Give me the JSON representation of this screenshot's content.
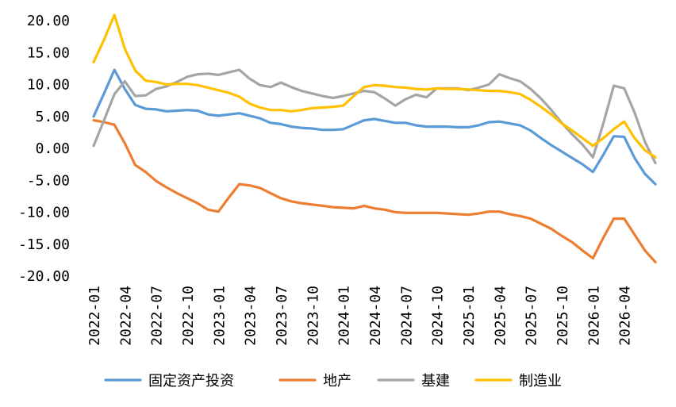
{
  "chart_data": {
    "type": "line",
    "title": "",
    "xlabel": "",
    "ylabel": "",
    "ylim": [
      -20,
      20
    ],
    "y_ticks": [
      "20.00",
      "15.00",
      "10.00",
      "5.00",
      "0.00",
      "-5.00",
      "-10.00",
      "-15.00",
      "-20.00"
    ],
    "y_tick_values": [
      20,
      15,
      10,
      5,
      0,
      -5,
      -10,
      -15,
      -20
    ],
    "grid": false,
    "legend_position": "bottom",
    "x": [
      "2022-01",
      "2022-02",
      "2022-03",
      "2022-04",
      "2022-05",
      "2022-06",
      "2022-07",
      "2022-08",
      "2022-09",
      "2022-10",
      "2022-11",
      "2022-12",
      "2023-01",
      "2023-02",
      "2023-03",
      "2023-04",
      "2023-05",
      "2023-06",
      "2023-07",
      "2023-08",
      "2023-09",
      "2023-10",
      "2023-11",
      "2023-12",
      "2024-01",
      "2024-02",
      "2024-03",
      "2024-04",
      "2024-05",
      "2024-06",
      "2024-07",
      "2024-08",
      "2024-09",
      "2024-10",
      "2024-11",
      "2024-12",
      "2025-01",
      "2025-02",
      "2025-03",
      "2025-04",
      "2025-05",
      "2025-06",
      "2025-07",
      "2025-08",
      "2025-09",
      "2025-10",
      "2025-11",
      "2025-12",
      "2026-01",
      "2026-02",
      "2026-03",
      "2026-04",
      "2026-05",
      "2026-06",
      "2026-07"
    ],
    "x_tick_labels": [
      "2022-01",
      "2022-04",
      "2022-07",
      "2022-10",
      "2023-01",
      "2023-04",
      "2023-07",
      "2023-10",
      "2024-01",
      "2024-04",
      "2024-07",
      "2024-10",
      "2025-01",
      "2025-04",
      "2025-07",
      "2025-10",
      "2026-01",
      "2026-04"
    ],
    "series": [
      {
        "name": "固定资产投资",
        "color": "#5B9BD5",
        "values": [
          5.0,
          8.6,
          12.3,
          9.3,
          6.8,
          6.2,
          6.1,
          5.8,
          5.9,
          6.0,
          5.9,
          5.3,
          5.1,
          5.3,
          5.5,
          5.1,
          4.7,
          4.0,
          3.8,
          3.4,
          3.2,
          3.1,
          2.9,
          2.9,
          3.0,
          3.7,
          4.4,
          4.6,
          4.3,
          4.0,
          4.0,
          3.6,
          3.4,
          3.4,
          3.4,
          3.3,
          3.3,
          3.6,
          4.1,
          4.2,
          3.9,
          3.6,
          2.8,
          1.6,
          0.5,
          -0.5,
          -1.5,
          -2.5,
          -3.7,
          -1.0,
          1.9,
          1.8,
          -1.5,
          -4.0,
          -5.6
        ]
      },
      {
        "name": "地产",
        "color": "#ED7D31",
        "values": [
          4.4,
          4.1,
          3.7,
          0.8,
          -2.6,
          -3.7,
          -5.1,
          -6.1,
          -7.0,
          -7.8,
          -8.6,
          -9.6,
          -9.9,
          -7.7,
          -5.6,
          -5.8,
          -6.2,
          -7.0,
          -7.8,
          -8.3,
          -8.6,
          -8.8,
          -9.0,
          -9.2,
          -9.3,
          -9.4,
          -9.0,
          -9.4,
          -9.6,
          -10.0,
          -10.1,
          -10.1,
          -10.1,
          -10.1,
          -10.2,
          -10.3,
          -10.4,
          -10.2,
          -9.9,
          -9.9,
          -10.3,
          -10.6,
          -11.0,
          -11.8,
          -12.6,
          -13.7,
          -14.7,
          -16.0,
          -17.2,
          -14.0,
          -11.0,
          -11.0,
          -13.5,
          -16.0,
          -17.8
        ]
      },
      {
        "name": "基建",
        "color": "#A5A5A5",
        "values": [
          0.4,
          4.4,
          8.5,
          10.5,
          8.2,
          8.3,
          9.3,
          9.7,
          10.4,
          11.2,
          11.6,
          11.7,
          11.5,
          11.9,
          12.3,
          10.9,
          9.9,
          9.6,
          10.3,
          9.6,
          9.0,
          8.6,
          8.2,
          7.9,
          8.2,
          8.6,
          9.0,
          8.8,
          7.8,
          6.7,
          7.7,
          8.4,
          8.0,
          9.4,
          9.4,
          9.4,
          9.1,
          9.5,
          10.0,
          11.6,
          11.0,
          10.5,
          9.3,
          7.8,
          6.0,
          4.0,
          2.2,
          0.6,
          -1.4,
          3.9,
          9.8,
          9.4,
          5.6,
          1.0,
          -2.3
        ]
      },
      {
        "name": "制造业",
        "color": "#FFC000",
        "values": [
          13.5,
          17.0,
          20.9,
          15.6,
          12.2,
          10.6,
          10.4,
          10.0,
          10.1,
          10.1,
          9.9,
          9.5,
          9.1,
          8.7,
          8.1,
          7.0,
          6.4,
          6.0,
          6.0,
          5.8,
          6.0,
          6.3,
          6.4,
          6.5,
          6.7,
          8.2,
          9.6,
          9.9,
          9.8,
          9.6,
          9.5,
          9.3,
          9.2,
          9.4,
          9.3,
          9.3,
          9.2,
          9.1,
          9.0,
          9.0,
          8.8,
          8.5,
          7.6,
          6.5,
          5.3,
          3.9,
          2.8,
          1.6,
          0.4,
          1.6,
          3.0,
          4.2,
          1.6,
          -0.3,
          -1.4
        ]
      }
    ]
  }
}
